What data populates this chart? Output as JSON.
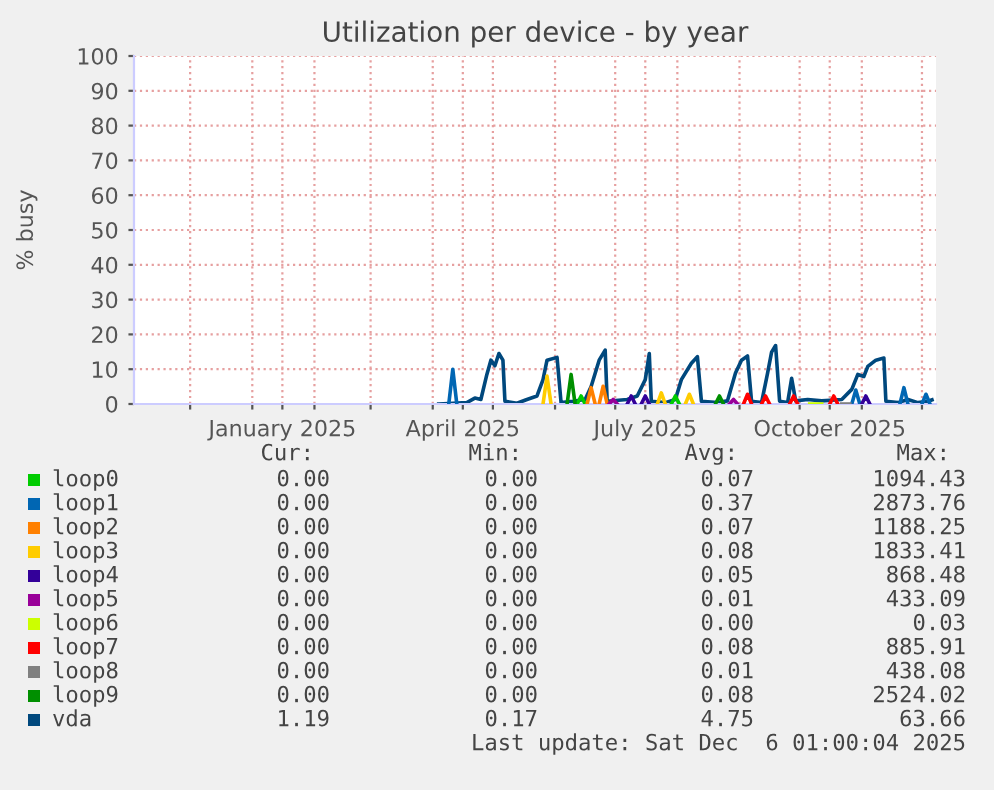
{
  "chart_data": {
    "type": "line",
    "title": "Utilization per device - by year",
    "ylabel": "% busy",
    "xlim": [
      "2024-11-03",
      "2025-12-08"
    ],
    "ylim": [
      0,
      100
    ],
    "yticks": [
      0,
      10,
      20,
      30,
      40,
      50,
      60,
      70,
      80,
      90,
      100
    ],
    "xticks": [
      {
        "value": "2024-12-01",
        "label": null
      },
      {
        "value": "2025-01-01",
        "label": null
      },
      {
        "value": "2025-01-16",
        "label": "January 2025"
      },
      {
        "value": "2025-02-01",
        "label": null
      },
      {
        "value": "2025-03-01",
        "label": null
      },
      {
        "value": "2025-04-01",
        "label": null
      },
      {
        "value": "2025-04-16",
        "label": "April 2025"
      },
      {
        "value": "2025-05-01",
        "label": null
      },
      {
        "value": "2025-06-01",
        "label": null
      },
      {
        "value": "2025-07-01",
        "label": null
      },
      {
        "value": "2025-07-16",
        "label": "July 2025"
      },
      {
        "value": "2025-08-01",
        "label": null
      },
      {
        "value": "2025-09-01",
        "label": null
      },
      {
        "value": "2025-10-01",
        "label": null
      },
      {
        "value": "2025-10-16",
        "label": "October 2025"
      },
      {
        "value": "2025-11-01",
        "label": null
      },
      {
        "value": "2025-12-01",
        "label": null
      }
    ],
    "grid": true,
    "legend": "bottom",
    "marker": "none",
    "line_style": "solid",
    "series": [
      {
        "name": "loop0",
        "color": "#00cc00",
        "x": [
          "2025-06-12",
          "2025-06-14",
          "2025-06-16",
          "2025-07-01",
          "2025-07-29",
          "2025-07-31",
          "2025-08-02"
        ],
        "values": [
          0,
          2.3,
          0,
          null,
          0,
          2.3,
          0
        ]
      },
      {
        "name": "loop1",
        "color": "#0066b3",
        "x": [
          "2025-04-09",
          "2025-04-11",
          "2025-04-13",
          "2025-07-01",
          "2025-10-27",
          "2025-10-29",
          "2025-10-31",
          "2025-11-10",
          "2025-11-20",
          "2025-11-22",
          "2025-11-24",
          "2025-11-28",
          "2025-12-01",
          "2025-12-03",
          "2025-12-05"
        ],
        "values": [
          0,
          10,
          0,
          null,
          0,
          4,
          0,
          null,
          0,
          4.7,
          0,
          null,
          0,
          2.8,
          0
        ]
      },
      {
        "name": "loop2",
        "color": "#ff8000",
        "x": [
          "2025-06-17",
          "2025-06-19",
          "2025-06-21",
          "2025-06-22",
          "2025-06-23",
          "2025-06-25",
          "2025-06-27"
        ],
        "values": [
          0,
          4.7,
          0,
          null,
          0,
          5.1,
          0
        ]
      },
      {
        "name": "loop3",
        "color": "#ffcc00",
        "x": [
          "2025-05-26",
          "2025-05-28",
          "2025-05-30",
          "2025-07-01",
          "2025-07-22",
          "2025-07-24",
          "2025-07-26",
          "2025-08-01",
          "2025-08-05",
          "2025-08-07",
          "2025-08-09"
        ],
        "values": [
          0,
          8,
          0,
          null,
          0,
          3.2,
          0,
          null,
          0,
          2.8,
          0
        ]
      },
      {
        "name": "loop4",
        "color": "#330099",
        "x": [
          "2025-07-07",
          "2025-07-09",
          "2025-07-11",
          "2025-07-12",
          "2025-07-14",
          "2025-07-16",
          "2025-07-18",
          "2025-09-01",
          "2025-11-01",
          "2025-11-03",
          "2025-11-05"
        ],
        "values": [
          0,
          2.3,
          0,
          null,
          0,
          2.3,
          0,
          null,
          0,
          2.3,
          0
        ]
      },
      {
        "name": "loop5",
        "color": "#990099",
        "x": [
          "2025-06-28",
          "2025-06-30",
          "2025-07-02",
          "2025-07-15",
          "2025-08-27",
          "2025-08-29",
          "2025-08-31"
        ],
        "values": [
          0,
          1.3,
          0,
          null,
          0,
          1.3,
          0
        ]
      },
      {
        "name": "loop6",
        "color": "#ccff00",
        "x": [
          "2025-10-06",
          "2025-10-12"
        ],
        "values": [
          0,
          0
        ]
      },
      {
        "name": "loop7",
        "color": "#ff0000",
        "x": [
          "2025-09-03",
          "2025-09-05",
          "2025-09-07",
          "2025-09-10",
          "2025-09-12",
          "2025-09-14",
          "2025-09-16",
          "2025-09-20",
          "2025-09-26",
          "2025-09-28",
          "2025-09-30",
          "2025-10-10",
          "2025-10-16",
          "2025-10-18",
          "2025-10-20"
        ],
        "values": [
          0,
          2.8,
          0,
          null,
          0,
          2.3,
          0,
          null,
          0,
          2.3,
          0,
          null,
          0,
          2.3,
          0
        ]
      },
      {
        "name": "loop8",
        "color": "#808080",
        "x": [
          "2025-10-22",
          "2025-10-26"
        ],
        "values": [
          0,
          0
        ]
      },
      {
        "name": "loop9",
        "color": "#008f00",
        "x": [
          "2025-06-07",
          "2025-06-09",
          "2025-06-11",
          "2025-07-01",
          "2025-08-20",
          "2025-08-22",
          "2025-08-24"
        ],
        "values": [
          0,
          8.5,
          0,
          null,
          0,
          2.3,
          0
        ]
      },
      {
        "name": "vda",
        "color": "#00487d",
        "x": [
          "2025-04-04",
          "2025-04-18",
          "2025-04-22",
          "2025-04-25",
          "2025-04-28",
          "2025-04-30",
          "2025-05-02",
          "2025-05-04",
          "2025-05-06",
          "2025-05-07",
          "2025-05-13",
          "2025-05-18",
          "2025-05-23",
          "2025-05-26",
          "2025-05-28",
          "2025-06-02",
          "2025-06-04",
          "2025-06-10",
          "2025-06-16",
          "2025-06-19",
          "2025-06-23",
          "2025-06-26",
          "2025-06-27",
          "2025-07-07",
          "2025-07-12",
          "2025-07-16",
          "2025-07-18",
          "2025-07-19",
          "2025-07-26",
          "2025-07-31",
          "2025-08-03",
          "2025-08-08",
          "2025-08-11",
          "2025-08-13",
          "2025-08-21",
          "2025-08-26",
          "2025-08-30",
          "2025-09-02",
          "2025-09-05",
          "2025-09-07",
          "2025-09-12",
          "2025-09-15",
          "2025-09-17",
          "2025-09-19",
          "2025-09-21",
          "2025-09-25",
          "2025-09-27",
          "2025-09-29",
          "2025-10-05",
          "2025-10-12",
          "2025-10-22",
          "2025-10-27",
          "2025-10-30",
          "2025-11-02",
          "2025-11-04",
          "2025-11-08",
          "2025-11-12",
          "2025-11-13",
          "2025-11-19",
          "2025-11-24",
          "2025-11-29",
          "2025-12-04",
          "2025-12-06"
        ],
        "values": [
          0,
          0.4,
          1.7,
          1.3,
          8.5,
          12.6,
          11,
          14.5,
          12.6,
          0.8,
          0.2,
          1.3,
          2.3,
          7,
          12.6,
          13.4,
          0.4,
          0.8,
          1.3,
          5,
          12.6,
          15.5,
          0.8,
          1.3,
          2.3,
          7,
          14.5,
          0.8,
          0.4,
          1.3,
          7,
          11.7,
          13.6,
          0.8,
          0.4,
          0.9,
          8.9,
          12.6,
          13.8,
          0.8,
          0.4,
          8.9,
          14.9,
          16.8,
          0.8,
          0.4,
          7.4,
          0.9,
          1.3,
          0.9,
          1.3,
          4.2,
          8.5,
          7.9,
          10.8,
          12.6,
          13.2,
          0.8,
          0.4,
          1.3,
          0.4,
          0.8,
          1.2
        ]
      }
    ],
    "annotations": [
      "Cur: Min: Avg: Max:",
      "0.00 0.00 0.07 1094.43",
      "0.00 0.00 0.37 2873.76",
      "0.00 0.00 0.07 1188.25",
      "0.00 0.00 0.08 1833.41",
      "0.00 0.00 0.05 868.48",
      "0.00 0.00 0.01 433.09",
      "0.00 0.00 0.00 0.03",
      "0.00 0.00 0.08 885.91",
      "0.00 0.00 0.01 438.08",
      "0.00 0.00 0.08 2524.02",
      "1.19 0.17 4.75 63.66",
      "Last update: Sat Dec  6 01:00:04 2025"
    ]
  }
}
